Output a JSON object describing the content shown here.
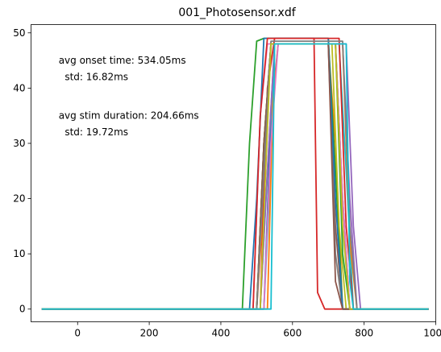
{
  "chart_data": {
    "type": "line",
    "title": "001_Photosensor.xdf",
    "xlabel": "",
    "ylabel": "",
    "xlim": [
      -130,
      1000
    ],
    "ylim": [
      -2.3,
      51.5
    ],
    "xticks": [
      0,
      200,
      400,
      600,
      800,
      1000
    ],
    "yticks": [
      0,
      10,
      20,
      30,
      40,
      50
    ],
    "grid": false,
    "legend": "none",
    "annotations": [
      {
        "text": "avg onset time: 534.05ms",
        "x": -53,
        "y": 45
      },
      {
        "text": "  std: 16.82ms",
        "x": -53,
        "y": 42
      },
      {
        "text": "avg stim duration: 204.66ms",
        "x": -53,
        "y": 35
      },
      {
        "text": "  std: 19.72ms",
        "x": -53,
        "y": 32
      }
    ],
    "colors": [
      "#1f77b4",
      "#ff7f0e",
      "#2ca02c",
      "#d62728",
      "#9467bd",
      "#8c564b",
      "#e377c2",
      "#7f7f7f",
      "#bcbd22",
      "#17becf"
    ],
    "series": [
      {
        "x": [
          -100,
          520,
          540,
          560,
          720,
          740,
          760,
          980
        ],
        "values": [
          0,
          0,
          35,
          48,
          48,
          20,
          0,
          0
        ]
      },
      {
        "x": [
          -100,
          500,
          520,
          540,
          700,
          720,
          740,
          980
        ],
        "values": [
          0,
          0,
          20,
          48,
          48,
          30,
          0,
          0
        ]
      },
      {
        "x": [
          -100,
          460,
          480,
          500,
          520,
          700,
          720,
          740,
          980
        ],
        "values": [
          0,
          0,
          30,
          48.5,
          49,
          49,
          25,
          0,
          0
        ]
      },
      {
        "x": [
          -100,
          510,
          530,
          550,
          660,
          670,
          690,
          980
        ],
        "values": [
          0,
          0,
          40,
          49,
          49,
          3,
          0,
          0
        ]
      },
      {
        "x": [
          -100,
          500,
          520,
          540,
          740,
          760,
          780,
          980
        ],
        "values": [
          0,
          0,
          25,
          48,
          48,
          20,
          0,
          0
        ]
      },
      {
        "x": [
          -100,
          500,
          520,
          540,
          700,
          720,
          740,
          980
        ],
        "values": [
          0,
          0,
          30,
          48,
          48,
          15,
          0,
          0
        ]
      },
      {
        "x": [
          -100,
          490,
          510,
          530,
          720,
          740,
          760,
          980
        ],
        "values": [
          0,
          0,
          35,
          48,
          48,
          20,
          0,
          0
        ]
      },
      {
        "x": [
          -100,
          510,
          530,
          550,
          700,
          720,
          740,
          980
        ],
        "values": [
          0,
          0,
          25,
          48,
          48,
          10,
          0,
          0
        ]
      },
      {
        "x": [
          -100,
          500,
          520,
          540,
          710,
          730,
          750,
          980
        ],
        "values": [
          0,
          0,
          30,
          48,
          48,
          15,
          0,
          0
        ]
      },
      {
        "x": [
          -100,
          520,
          535,
          550,
          730,
          750,
          770,
          980
        ],
        "values": [
          0,
          0,
          20,
          48,
          48,
          25,
          0,
          0
        ]
      },
      {
        "x": [
          -100,
          480,
          500,
          520,
          700,
          720,
          740,
          980
        ],
        "values": [
          0,
          0,
          20,
          49,
          49,
          20,
          0,
          0
        ]
      },
      {
        "x": [
          -100,
          530,
          545,
          560,
          740,
          760,
          780,
          980
        ],
        "values": [
          0,
          0,
          37,
          48,
          48,
          12,
          0,
          0
        ]
      },
      {
        "x": [
          -100,
          500,
          520,
          540,
          720,
          740,
          760,
          980
        ],
        "values": [
          0,
          0,
          30,
          48,
          48,
          10,
          0,
          0
        ]
      },
      {
        "x": [
          -100,
          490,
          510,
          530,
          730,
          750,
          770,
          980
        ],
        "values": [
          0,
          0,
          35,
          49,
          49,
          15,
          0,
          0
        ]
      },
      {
        "x": [
          -100,
          510,
          530,
          550,
          750,
          770,
          790,
          980
        ],
        "values": [
          0,
          0,
          25,
          48,
          48,
          15,
          0,
          0
        ]
      },
      {
        "x": [
          -100,
          500,
          520,
          540,
          700,
          720,
          740,
          980
        ],
        "values": [
          0,
          0,
          30,
          48,
          48,
          5,
          0,
          0
        ]
      },
      {
        "x": [
          -100,
          520,
          540,
          560,
          720,
          740,
          760,
          980
        ],
        "values": [
          0,
          0,
          30,
          48,
          48,
          20,
          0,
          0
        ]
      },
      {
        "x": [
          -100,
          500,
          520,
          540,
          740,
          760,
          780,
          980
        ],
        "values": [
          0,
          0,
          25,
          48.5,
          48.5,
          15,
          0,
          0
        ]
      },
      {
        "x": [
          -100,
          510,
          525,
          540,
          720,
          740,
          760,
          980
        ],
        "values": [
          0,
          0,
          25,
          48,
          48,
          15,
          0,
          0
        ]
      },
      {
        "x": [
          -100,
          540,
          550,
          560,
          750,
          760,
          770,
          980
        ],
        "values": [
          0,
          0,
          48,
          48,
          48,
          5,
          0,
          0
        ]
      }
    ]
  }
}
